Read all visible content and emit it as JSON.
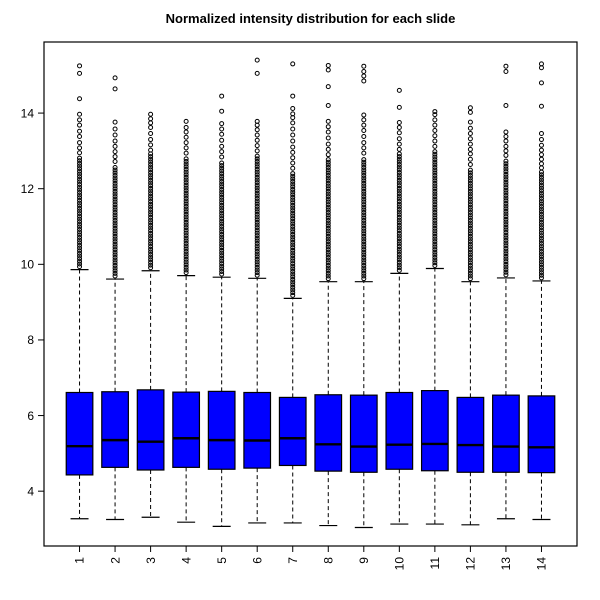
{
  "chart_data": {
    "type": "boxplot",
    "title": "Normalized intensity distribution for each slide",
    "xlabel": "",
    "ylabel": "",
    "categories": [
      "1",
      "2",
      "3",
      "4",
      "5",
      "6",
      "7",
      "8",
      "9",
      "10",
      "11",
      "12",
      "13",
      "14"
    ],
    "y_ticks": [
      4,
      6,
      8,
      10,
      12,
      14
    ],
    "ylim": [
      2.55,
      15.88
    ],
    "grid": "off",
    "legend": "none",
    "box_fill": "#0000ff",
    "line_color": "#000000",
    "background": "#ffffff",
    "series": [
      {
        "label": "1",
        "whisker_low": 3.27,
        "q1": 4.43,
        "median": 5.19,
        "q3": 6.61,
        "whisker_high": 9.86,
        "outlier_band": [
          9.94,
          12.85
        ],
        "outliers_sparse": [
          12.95,
          13.08,
          13.22,
          13.38,
          13.52,
          13.68,
          13.82,
          13.97
        ],
        "outliers_isolated": [
          14.38,
          15.05,
          15.25
        ]
      },
      {
        "label": "2",
        "whisker_low": 3.25,
        "q1": 4.63,
        "median": 5.35,
        "q3": 6.63,
        "whisker_high": 9.61,
        "outlier_band": [
          9.69,
          12.62
        ],
        "outliers_sparse": [
          12.72,
          12.85,
          12.98,
          13.12,
          13.26,
          13.42,
          13.58,
          13.76
        ],
        "outliers_isolated": [
          14.64,
          14.93
        ]
      },
      {
        "label": "3",
        "whisker_low": 3.31,
        "q1": 4.56,
        "median": 5.31,
        "q3": 6.68,
        "whisker_high": 9.83,
        "outlier_band": [
          9.91,
          12.92
        ],
        "outliers_sparse": [
          13.02,
          13.16,
          13.3,
          13.46,
          13.62,
          13.74,
          13.85,
          13.97
        ],
        "outliers_isolated": []
      },
      {
        "label": "4",
        "whisker_low": 3.18,
        "q1": 4.63,
        "median": 5.4,
        "q3": 6.62,
        "whisker_high": 9.7,
        "outlier_band": [
          9.78,
          12.82
        ],
        "outliers_sparse": [
          12.94,
          13.08,
          13.22,
          13.36,
          13.5,
          13.62,
          13.78
        ],
        "outliers_isolated": []
      },
      {
        "label": "5",
        "whisker_low": 3.07,
        "q1": 4.58,
        "median": 5.35,
        "q3": 6.64,
        "whisker_high": 9.66,
        "outlier_band": [
          9.74,
          12.72
        ],
        "outliers_sparse": [
          12.84,
          12.98,
          13.12,
          13.28,
          13.44,
          13.58,
          13.72
        ],
        "outliers_isolated": [
          14.05,
          14.45
        ]
      },
      {
        "label": "6",
        "whisker_low": 3.16,
        "q1": 4.61,
        "median": 5.34,
        "q3": 6.61,
        "whisker_high": 9.63,
        "outlier_band": [
          9.71,
          12.9
        ],
        "outliers_sparse": [
          13.0,
          13.14,
          13.28,
          13.42,
          13.56,
          13.68,
          13.78
        ],
        "outliers_isolated": [
          15.05,
          15.4
        ]
      },
      {
        "label": "7",
        "whisker_low": 3.16,
        "q1": 4.68,
        "median": 5.4,
        "q3": 6.48,
        "whisker_high": 9.1,
        "outlier_band": [
          9.18,
          12.42
        ],
        "outliers_sparse": [
          12.54,
          12.68,
          12.82,
          12.96,
          13.1,
          13.26,
          13.42,
          13.58,
          13.74,
          13.88,
          13.98
        ],
        "outliers_isolated": [
          14.12,
          14.45,
          15.3
        ]
      },
      {
        "label": "8",
        "whisker_low": 3.09,
        "q1": 4.53,
        "median": 5.24,
        "q3": 6.55,
        "whisker_high": 9.54,
        "outlier_band": [
          9.62,
          12.78
        ],
        "outliers_sparse": [
          12.9,
          13.04,
          13.18,
          13.34,
          13.5,
          13.64,
          13.78
        ],
        "outliers_isolated": [
          14.2,
          14.7,
          15.14,
          15.26
        ]
      },
      {
        "label": "9",
        "whisker_low": 3.04,
        "q1": 4.5,
        "median": 5.18,
        "q3": 6.54,
        "whisker_high": 9.54,
        "outlier_band": [
          9.62,
          12.82
        ],
        "outliers_sparse": [
          12.94,
          13.08,
          13.22,
          13.38,
          13.54,
          13.68,
          13.82,
          13.95
        ],
        "outliers_isolated": [
          14.85,
          14.98,
          15.1,
          15.24
        ]
      },
      {
        "label": "10",
        "whisker_low": 3.13,
        "q1": 4.58,
        "median": 5.23,
        "q3": 6.61,
        "whisker_high": 9.76,
        "outlier_band": [
          9.84,
          12.92
        ],
        "outliers_sparse": [
          13.04,
          13.18,
          13.32,
          13.48,
          13.62,
          13.75
        ],
        "outliers_isolated": [
          14.15,
          14.6
        ]
      },
      {
        "label": "11",
        "whisker_low": 3.13,
        "q1": 4.54,
        "median": 5.25,
        "q3": 6.66,
        "whisker_high": 9.89,
        "outlier_band": [
          9.97,
          13.02
        ],
        "outliers_sparse": [
          13.12,
          13.26,
          13.4,
          13.54,
          13.68,
          13.82,
          13.96,
          14.04
        ],
        "outliers_isolated": []
      },
      {
        "label": "12",
        "whisker_low": 3.11,
        "q1": 4.5,
        "median": 5.22,
        "q3": 6.48,
        "whisker_high": 9.54,
        "outlier_band": [
          9.62,
          12.52
        ],
        "outliers_sparse": [
          12.64,
          12.78,
          12.92,
          13.04,
          13.18,
          13.32,
          13.46,
          13.6,
          13.76
        ],
        "outliers_isolated": [
          14.02,
          14.14
        ]
      },
      {
        "label": "13",
        "whisker_low": 3.27,
        "q1": 4.5,
        "median": 5.18,
        "q3": 6.54,
        "whisker_high": 9.64,
        "outlier_band": [
          9.72,
          12.78
        ],
        "outliers_sparse": [
          12.88,
          13.0,
          13.12,
          13.26,
          13.38,
          13.5
        ],
        "outliers_isolated": [
          14.2,
          15.1,
          15.24
        ]
      },
      {
        "label": "14",
        "whisker_low": 3.25,
        "q1": 4.49,
        "median": 5.16,
        "q3": 6.52,
        "whisker_high": 9.56,
        "outlier_band": [
          9.64,
          12.45
        ],
        "outliers_sparse": [
          12.55,
          12.66,
          12.78,
          12.9,
          13.02,
          13.15,
          13.3,
          13.46
        ],
        "outliers_isolated": [
          14.18,
          14.8,
          15.2,
          15.3
        ]
      }
    ]
  }
}
